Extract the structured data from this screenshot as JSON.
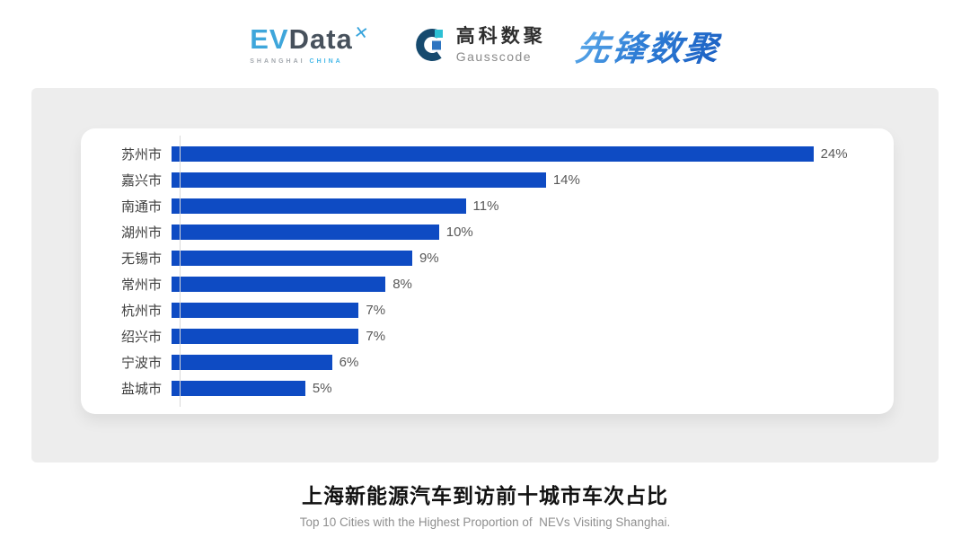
{
  "header": {
    "evdata": {
      "ev": "EV",
      "data": "Data",
      "x_mark": "✕",
      "sub_shanghai": "SHANGHAI",
      "sub_china": "CHINA"
    },
    "gausscode": {
      "cn": "高科数聚",
      "en": "Gausscode"
    },
    "pioneer": {
      "text": "先锋数聚"
    }
  },
  "chart_data": {
    "type": "bar",
    "orientation": "horizontal",
    "categories": [
      "苏州市",
      "嘉兴市",
      "南通市",
      "湖州市",
      "无锡市",
      "常州市",
      "杭州市",
      "绍兴市",
      "宁波市",
      "盐城市"
    ],
    "values": [
      24,
      14,
      11,
      10,
      9,
      8,
      7,
      7,
      6,
      5
    ],
    "value_labels": [
      "24%",
      "14%",
      "11%",
      "10%",
      "9%",
      "8%",
      "7%",
      "7%",
      "6%",
      "5%"
    ],
    "value_suffix": "%",
    "xlim": [
      0,
      24
    ],
    "grid": false,
    "legend": "none",
    "bar_color": "#0e4bc3",
    "axis_line_color": "#d9d9d9",
    "title": "上海新能源汽车到访前十城市车次占比",
    "subtitle": "Top 10 Cities with the Highest Proportion of  NEVs Visiting Shanghai.",
    "xlabel": "",
    "ylabel": ""
  }
}
